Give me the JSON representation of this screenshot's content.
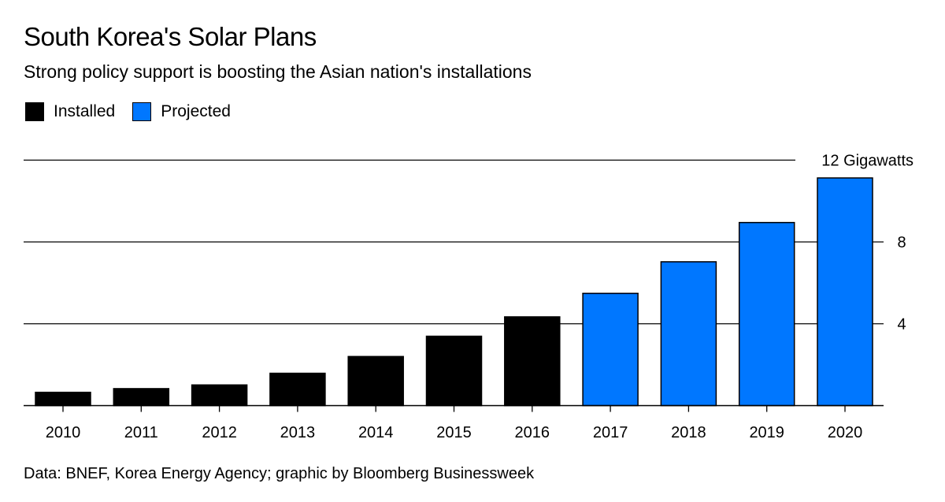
{
  "chart_data": {
    "type": "bar",
    "title": "South Korea's Solar Plans",
    "subtitle": "Strong policy support is boosting the Asian nation's installations",
    "categories": [
      "2010",
      "2011",
      "2012",
      "2013",
      "2014",
      "2015",
      "2016",
      "2017",
      "2018",
      "2019",
      "2020"
    ],
    "values": [
      0.65,
      0.83,
      1.01,
      1.58,
      2.4,
      3.39,
      4.34,
      5.49,
      7.03,
      8.95,
      11.13
    ],
    "status": [
      "Installed",
      "Installed",
      "Installed",
      "Installed",
      "Installed",
      "Installed",
      "Installed",
      "Projected",
      "Projected",
      "Projected",
      "Projected"
    ],
    "legend": [
      {
        "name": "Installed",
        "color": "#000000"
      },
      {
        "name": "Projected",
        "color": "#0077ff"
      }
    ],
    "legend_placement": "top-left",
    "ylim": [
      0,
      12
    ],
    "yticks": [
      4,
      8,
      12
    ],
    "ytick_labels": [
      "4",
      "8",
      "12 Gigawatts"
    ],
    "y_axis_side": "right",
    "grid": true,
    "xlabel": "",
    "ylabel": "",
    "source": "Data: BNEF, Korea Energy Agency; graphic by Bloomberg Businessweek"
  }
}
